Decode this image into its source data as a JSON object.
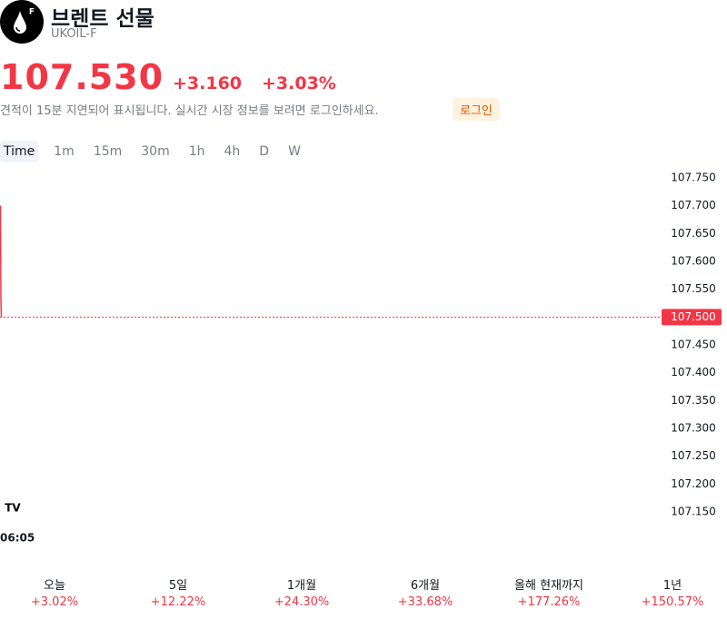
{
  "header": {
    "title": "브렌트 선물",
    "symbol": "UKOIL-F"
  },
  "quote": {
    "price": "107.530",
    "change": "+3.160",
    "change_percent": "+3.03%",
    "delay_notice": "견적이 15분 지연되어 표시됩니다. 실시간 시장 정보를 보려면 로그인하세요.",
    "login": "로그인"
  },
  "intervals": [
    "Time",
    "1m",
    "15m",
    "30m",
    "1h",
    "4h",
    "D",
    "W"
  ],
  "chart_data": {
    "type": "line",
    "categories": [
      null,
      null,
      null
    ],
    "series": [
      {
        "color": "#f23645",
        "values": [
          107.7,
          107.53,
          107.5
        ]
      }
    ],
    "ylim": [
      107.15,
      107.75
    ],
    "yticks": [
      {
        "value": 107.75,
        "label": "107.750"
      },
      {
        "value": 107.7,
        "label": "107.700"
      },
      {
        "value": 107.65,
        "label": "107.650"
      },
      {
        "value": 107.6,
        "label": "107.600"
      },
      {
        "value": 107.55,
        "label": "107.550"
      },
      {
        "value": 107.45,
        "label": "107.450"
      },
      {
        "value": 107.4,
        "label": "107.400"
      },
      {
        "value": 107.35,
        "label": "107.350"
      },
      {
        "value": 107.3,
        "label": "107.300"
      },
      {
        "value": 107.25,
        "label": "107.250"
      },
      {
        "value": 107.2,
        "label": "107.200"
      },
      {
        "value": 107.15,
        "label": "107.150"
      }
    ],
    "last_price": {
      "value": 107.5,
      "label": "107.500"
    },
    "xticks": [
      "06:05"
    ]
  },
  "performance": [
    {
      "label": "오늘",
      "value": "+3.02%"
    },
    {
      "label": "5일",
      "value": "+12.22%"
    },
    {
      "label": "1개월",
      "value": "+24.30%"
    },
    {
      "label": "6개월",
      "value": "+33.68%"
    },
    {
      "label": "올해 현재까지",
      "value": "+177.26%"
    },
    {
      "label": "1년",
      "value": "+150.57%"
    }
  ]
}
